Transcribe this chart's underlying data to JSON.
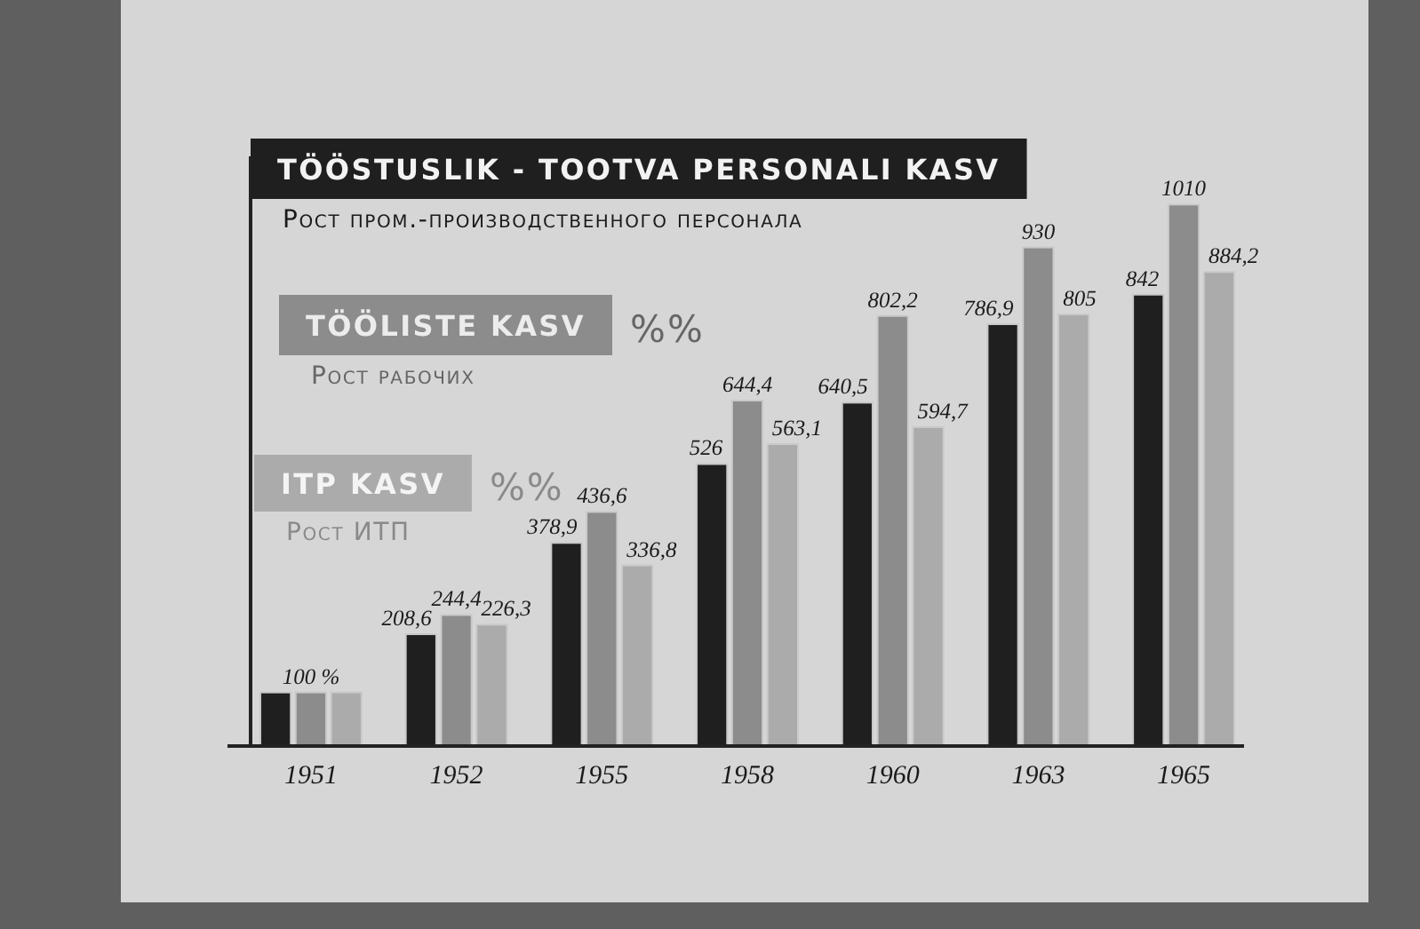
{
  "chart_data": {
    "type": "bar",
    "categories": [
      "1951",
      "1952",
      "1955",
      "1958",
      "1960",
      "1963",
      "1965"
    ],
    "series": [
      {
        "name": "TÖÖSTUSLIK - TOOTVA PERSONALI KASV",
        "color": "#1f1f1f",
        "values": [
          100,
          208.6,
          378.9,
          526,
          640.5,
          786.9,
          842
        ],
        "value_labels": [
          null,
          "208,6",
          "378,9",
          "526",
          "640,5",
          "786,9",
          "842"
        ]
      },
      {
        "name": "TÖÖLISTE KASV",
        "color": "#8c8c8c",
        "values": [
          100,
          244.4,
          436.6,
          644.4,
          802.2,
          930,
          1010
        ],
        "value_labels": [
          "100 %",
          "244,4",
          "436,6",
          "644,4",
          "802,2",
          "930",
          "1010"
        ]
      },
      {
        "name": "ITP KASV",
        "color": "#ababab",
        "values": [
          100,
          226.3,
          336.8,
          563.1,
          594.7,
          805,
          884.2
        ],
        "value_labels": [
          null,
          "226,3",
          "336,8",
          "563,1",
          "594,7",
          "805",
          "884,2"
        ]
      }
    ],
    "annotations": [
      "Рост пром.-производственного персонала",
      "%%",
      "Рост рабочих",
      "%%",
      "Рост ИТП"
    ],
    "ylim": [
      0,
      1100
    ],
    "tick_labels": "x",
    "legend": "top left"
  }
}
